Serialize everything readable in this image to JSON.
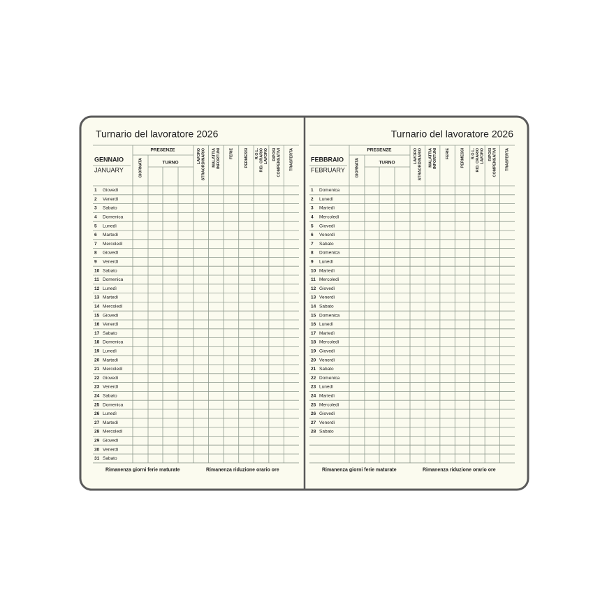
{
  "pages": [
    {
      "title": "Turnario del lavoratore 2026",
      "month": "GENNAIO",
      "month_en": "JANUARY",
      "presenze": "PRESENZE",
      "giornata": "GIORNATA",
      "turno": "TURNO",
      "columns": [
        [
          "LAVORO",
          "STRAORDINARIO"
        ],
        [
          "MALATTIA",
          "INFORTUNI"
        ],
        [
          "FERIE"
        ],
        [
          "PERMESSI"
        ],
        [
          "R.O.L.",
          "RID. ORARIO",
          "LAVORO"
        ],
        [
          "RIPOSI",
          "COMPENSATIVI"
        ],
        [
          "TRASFERTA"
        ]
      ],
      "days": [
        [
          1,
          "Giovedì"
        ],
        [
          2,
          "Venerdì"
        ],
        [
          3,
          "Sabato"
        ],
        [
          4,
          "Domenica"
        ],
        [
          5,
          "Lunedì"
        ],
        [
          6,
          "Martedì"
        ],
        [
          7,
          "Mercoledì"
        ],
        [
          8,
          "Giovedì"
        ],
        [
          9,
          "Venerdì"
        ],
        [
          10,
          "Sabato"
        ],
        [
          11,
          "Domenica"
        ],
        [
          12,
          "Lunedì"
        ],
        [
          13,
          "Martedì"
        ],
        [
          14,
          "Mercoledì"
        ],
        [
          15,
          "Giovedì"
        ],
        [
          16,
          "Venerdì"
        ],
        [
          17,
          "Sabato"
        ],
        [
          18,
          "Domenica"
        ],
        [
          19,
          "Lunedì"
        ],
        [
          20,
          "Martedì"
        ],
        [
          21,
          "Mercoledì"
        ],
        [
          22,
          "Giovedì"
        ],
        [
          23,
          "Venerdì"
        ],
        [
          24,
          "Sabato"
        ],
        [
          25,
          "Domenica"
        ],
        [
          26,
          "Lunedì"
        ],
        [
          27,
          "Martedì"
        ],
        [
          28,
          "Mercoledì"
        ],
        [
          29,
          "Giovedì"
        ],
        [
          30,
          "Venerdì"
        ],
        [
          31,
          "Sabato"
        ]
      ],
      "footer": [
        "Rimanenza giorni ferie maturate",
        "Rimanenza riduzione orario ore"
      ]
    },
    {
      "title": "Turnario del lavoratore 2026",
      "month": "FEBBRAIO",
      "month_en": "FEBRUARY",
      "presenze": "PRESENZE",
      "giornata": "GIORNATA",
      "turno": "TURNO",
      "columns": [
        [
          "LAVORO",
          "STRAORDINARIO"
        ],
        [
          "MALATTIA",
          "INFORTUNI"
        ],
        [
          "FERIE"
        ],
        [
          "PERMESSI"
        ],
        [
          "R.O.L.",
          "RID. ORARIO",
          "LAVORO"
        ],
        [
          "RIPOSI",
          "COMPENSATIVI"
        ],
        [
          "TRASFERTA"
        ]
      ],
      "days": [
        [
          1,
          "Domenica"
        ],
        [
          2,
          "Lunedì"
        ],
        [
          3,
          "Martedì"
        ],
        [
          4,
          "Mercoledì"
        ],
        [
          5,
          "Giovedì"
        ],
        [
          6,
          "Venerdì"
        ],
        [
          7,
          "Sabato"
        ],
        [
          8,
          "Domenica"
        ],
        [
          9,
          "Lunedì"
        ],
        [
          10,
          "Martedì"
        ],
        [
          11,
          "Mercoledì"
        ],
        [
          12,
          "Giovedì"
        ],
        [
          13,
          "Venerdì"
        ],
        [
          14,
          "Sabato"
        ],
        [
          15,
          "Domenica"
        ],
        [
          16,
          "Lunedì"
        ],
        [
          17,
          "Martedì"
        ],
        [
          18,
          "Mercoledì"
        ],
        [
          19,
          "Giovedì"
        ],
        [
          20,
          "Venerdì"
        ],
        [
          21,
          "Sabato"
        ],
        [
          22,
          "Domenica"
        ],
        [
          23,
          "Lunedì"
        ],
        [
          24,
          "Martedì"
        ],
        [
          25,
          "Mercoledì"
        ],
        [
          26,
          "Giovedì"
        ],
        [
          27,
          "Venerdì"
        ],
        [
          28,
          "Sabato"
        ]
      ],
      "footer": [
        "Rimanenza giorni ferie maturate",
        "Rimanenza riduzione orario ore"
      ]
    }
  ]
}
